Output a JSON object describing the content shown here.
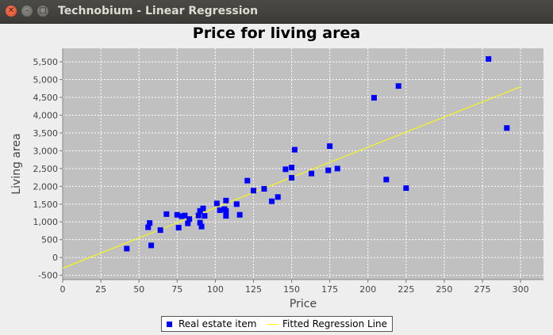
{
  "window": {
    "title": "Technobium - Linear Regression",
    "close_glyph": "✕",
    "minimize_glyph": "–",
    "maximize_glyph": "□"
  },
  "chart_data": {
    "type": "scatter",
    "title": "Price for living area",
    "xlabel": "Price",
    "ylabel": "Living area",
    "xlim": [
      0,
      315
    ],
    "ylim": [
      -620,
      5880
    ],
    "x_ticks": [
      0,
      25,
      50,
      75,
      100,
      125,
      150,
      175,
      200,
      225,
      250,
      275,
      300
    ],
    "y_ticks": [
      -500,
      0,
      500,
      1000,
      1500,
      2000,
      2500,
      3000,
      3500,
      4000,
      4500,
      5000,
      5500
    ],
    "x_tick_labels": [
      "0",
      "25",
      "50",
      "75",
      "100",
      "125",
      "150",
      "175",
      "200",
      "225",
      "250",
      "275",
      "300"
    ],
    "y_tick_labels": [
      "-500",
      "0",
      "500",
      "1,000",
      "1,500",
      "2,000",
      "2,500",
      "3,000",
      "3,500",
      "4,000",
      "4,500",
      "5,000",
      "5,500"
    ],
    "grid": true,
    "legend_position": "bottom",
    "plot_background": "#c0c0c0",
    "series": [
      {
        "name": "Real estate item",
        "type": "scatter",
        "color": "#0000ff",
        "points": [
          [
            42,
            250
          ],
          [
            56,
            850
          ],
          [
            57,
            970
          ],
          [
            58,
            340
          ],
          [
            64,
            770
          ],
          [
            68,
            1220
          ],
          [
            75,
            1200
          ],
          [
            76,
            840
          ],
          [
            78,
            1160
          ],
          [
            80,
            1180
          ],
          [
            82,
            960
          ],
          [
            83,
            1080
          ],
          [
            89,
            1180
          ],
          [
            90,
            1310
          ],
          [
            90,
            980
          ],
          [
            91,
            870
          ],
          [
            92,
            1380
          ],
          [
            93,
            1170
          ],
          [
            101,
            1520
          ],
          [
            103,
            1330
          ],
          [
            106,
            1360
          ],
          [
            107,
            1310
          ],
          [
            107,
            1170
          ],
          [
            107,
            1600
          ],
          [
            114,
            1500
          ],
          [
            116,
            1200
          ],
          [
            121,
            2160
          ],
          [
            125,
            1880
          ],
          [
            132,
            1930
          ],
          [
            137,
            1580
          ],
          [
            141,
            1700
          ],
          [
            146,
            2480
          ],
          [
            150,
            2530
          ],
          [
            150,
            2240
          ],
          [
            152,
            3030
          ],
          [
            163,
            2360
          ],
          [
            174,
            2450
          ],
          [
            175,
            3130
          ],
          [
            180,
            2500
          ],
          [
            204,
            4490
          ],
          [
            212,
            2190
          ],
          [
            220,
            4820
          ],
          [
            225,
            1950
          ],
          [
            279,
            5580
          ],
          [
            291,
            3640
          ]
        ]
      },
      {
        "name": "Fitted Regression Line",
        "type": "line",
        "color": "#ffff00",
        "points": [
          [
            0,
            -300
          ],
          [
            300,
            4800
          ]
        ]
      }
    ]
  }
}
